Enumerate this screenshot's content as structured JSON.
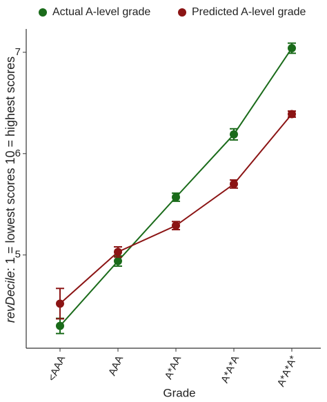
{
  "chart_data": {
    "type": "line",
    "x_label": "Grade",
    "y_label_italic": "revDecile",
    "y_label": ": 1 = lowest scores 10 = highest scores",
    "categories": [
      "<AAA",
      "AAA",
      "A*AA",
      "A*A*A",
      "A*A*A*"
    ],
    "series": [
      {
        "name": "Actual A-level grade",
        "color": "#1a6b1a",
        "values": [
          4.3,
          4.94,
          5.57,
          6.19,
          7.04
        ],
        "errors": [
          0.075,
          0.05,
          0.04,
          0.055,
          0.05
        ]
      },
      {
        "name": "Predicted A-level grade",
        "color": "#8b1414",
        "values": [
          4.52,
          5.03,
          5.29,
          5.7,
          6.39
        ],
        "errors": [
          0.15,
          0.05,
          0.04,
          0.04,
          0.03
        ]
      }
    ],
    "ylim": [
      4.08,
      7.23
    ],
    "yticks": [
      5,
      6,
      7
    ],
    "grid": false,
    "legend": "top"
  }
}
